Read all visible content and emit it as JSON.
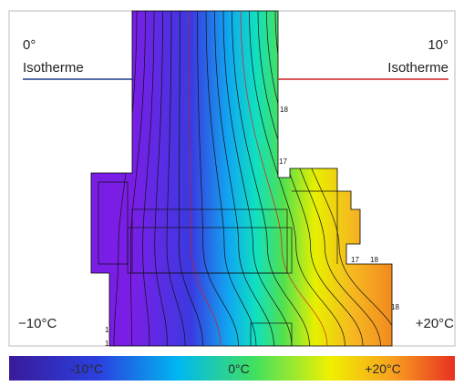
{
  "labels": {
    "left_degree": "0°",
    "left_caption": "Isotherme",
    "right_degree": "10°",
    "right_caption": "Isotherme",
    "left_temp": "−10°C",
    "right_temp": "+20°C"
  },
  "isotherm_labels": [
    "18",
    "17",
    "17",
    "18",
    "18",
    "1",
    "1"
  ],
  "scale": [
    "-10°C",
    "0°C",
    "+20°C"
  ]
}
